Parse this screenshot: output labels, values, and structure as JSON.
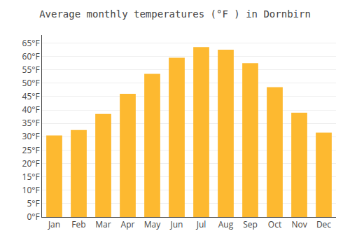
{
  "chart_data": {
    "type": "bar",
    "title": "Average monthly temperatures (°F ) in Dornbirn",
    "categories": [
      "Jan",
      "Feb",
      "Mar",
      "Apr",
      "May",
      "Jun",
      "Jul",
      "Aug",
      "Sep",
      "Oct",
      "Nov",
      "Dec"
    ],
    "values": [
      30.5,
      32.5,
      38.5,
      46.0,
      53.5,
      59.5,
      63.5,
      62.5,
      57.5,
      48.5,
      39.0,
      31.5
    ],
    "color": "#FDB930",
    "ylim": [
      0,
      68
    ],
    "yticks": [
      {
        "value": 0,
        "label": "0°F"
      },
      {
        "value": 5,
        "label": "5°F"
      },
      {
        "value": 10,
        "label": "10°F"
      },
      {
        "value": 15,
        "label": "15°F"
      },
      {
        "value": 20,
        "label": "20°F"
      },
      {
        "value": 25,
        "label": "25°F"
      },
      {
        "value": 30,
        "label": "30°F"
      },
      {
        "value": 35,
        "label": "35°F"
      },
      {
        "value": 40,
        "label": "40°F"
      },
      {
        "value": 45,
        "label": "45°F"
      },
      {
        "value": 50,
        "label": "50°F"
      },
      {
        "value": 55,
        "label": "55°F"
      },
      {
        "value": 60,
        "label": "60°F"
      },
      {
        "value": 65,
        "label": "65°F"
      }
    ],
    "grid": true
  }
}
